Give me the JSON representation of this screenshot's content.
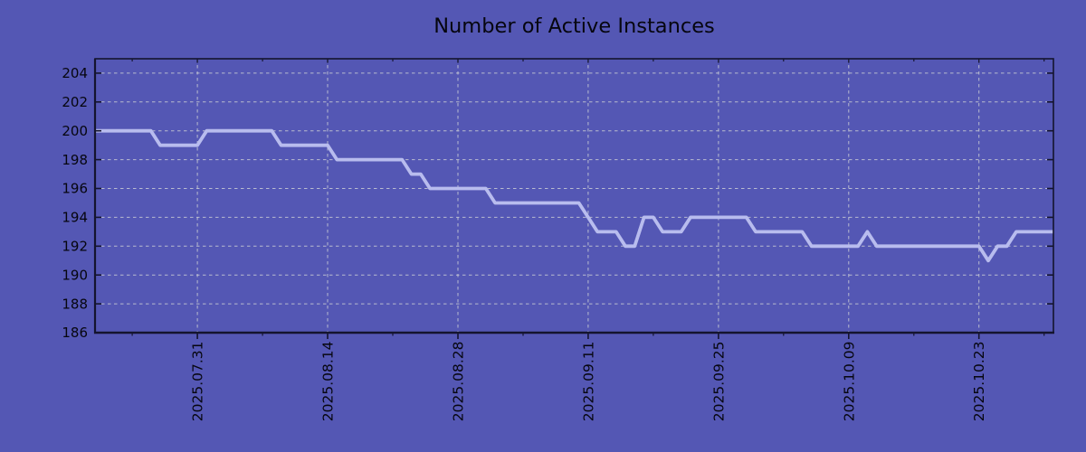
{
  "figure": {
    "title": "Number of Active Instances",
    "background_color": "#5457b4",
    "text_color": "#06060f",
    "axis_color": "#14142e",
    "grid_color": "#caccd4",
    "line_color": "#b8bcee"
  },
  "chart_data": {
    "type": "line",
    "title": "Number of Active Instances",
    "xlabel": "",
    "ylabel": "",
    "legend": null,
    "grid": true,
    "x_unit": "date",
    "x_start_date": "2025.07.20",
    "x_end_date": "2025.10.31",
    "x_step_days": 1,
    "values": [
      200,
      200,
      200,
      200,
      200,
      200,
      200,
      199,
      199,
      199,
      199,
      199,
      200,
      200,
      200,
      200,
      200,
      200,
      200,
      200,
      199,
      199,
      199,
      199,
      199,
      199,
      198,
      198,
      198,
      198,
      198,
      198,
      198,
      198,
      197,
      197,
      196,
      196,
      196,
      196,
      196,
      196,
      196,
      195,
      195,
      195,
      195,
      195,
      195,
      195,
      195,
      195,
      195,
      194,
      193,
      193,
      193,
      192,
      192,
      194,
      194,
      193,
      193,
      193,
      194,
      194,
      194,
      194,
      194,
      194,
      194,
      193,
      193,
      193,
      193,
      193,
      193,
      192,
      192,
      192,
      192,
      192,
      192,
      193,
      192,
      192,
      192,
      192,
      192,
      192,
      192,
      192,
      192,
      192,
      192,
      192,
      191,
      192,
      192,
      193,
      193,
      193,
      193,
      193
    ],
    "segments": [
      {
        "from": "2025.07.20",
        "to": "2025.07.26",
        "value": 200
      },
      {
        "from": "2025.07.27",
        "to": "2025.07.31",
        "value": 199
      },
      {
        "from": "2025.08.01",
        "to": "2025.08.08",
        "value": 200
      },
      {
        "from": "2025.08.09",
        "to": "2025.08.14",
        "value": 199
      },
      {
        "from": "2025.08.15",
        "to": "2025.08.22",
        "value": 198
      },
      {
        "from": "2025.08.23",
        "to": "2025.08.24",
        "value": 197
      },
      {
        "from": "2025.08.25",
        "to": "2025.08.31",
        "value": 196
      },
      {
        "from": "2025.09.01",
        "to": "2025.09.10",
        "value": 195
      },
      {
        "from": "2025.09.11",
        "to": "2025.09.11",
        "value": 194
      },
      {
        "from": "2025.09.12",
        "to": "2025.09.14",
        "value": 193
      },
      {
        "from": "2025.09.15",
        "to": "2025.09.16",
        "value": 192
      },
      {
        "from": "2025.09.17",
        "to": "2025.09.18",
        "value": 194
      },
      {
        "from": "2025.09.19",
        "to": "2025.09.21",
        "value": 193
      },
      {
        "from": "2025.09.22",
        "to": "2025.09.28",
        "value": 194
      },
      {
        "from": "2025.09.29",
        "to": "2025.10.04",
        "value": 193
      },
      {
        "from": "2025.10.05",
        "to": "2025.10.10",
        "value": 192
      },
      {
        "from": "2025.10.11",
        "to": "2025.10.11",
        "value": 193
      },
      {
        "from": "2025.10.12",
        "to": "2025.10.23",
        "value": 192
      },
      {
        "from": "2025.10.24",
        "to": "2025.10.24",
        "value": 191
      },
      {
        "from": "2025.10.25",
        "to": "2025.10.26",
        "value": 192
      },
      {
        "from": "2025.10.27",
        "to": "2025.10.31",
        "value": 193
      }
    ],
    "x_tick_labels": [
      "2025.07.31",
      "2025.08.14",
      "2025.08.28",
      "2025.09.11",
      "2025.09.25",
      "2025.10.09",
      "2025.10.23"
    ],
    "x_tick_day_indices": [
      11,
      25,
      39,
      53,
      67,
      81,
      95
    ],
    "x_minor_tick_day_indices": [
      4,
      18,
      32,
      46,
      60,
      74,
      88,
      102
    ],
    "y_ticks": [
      186,
      188,
      190,
      192,
      194,
      196,
      198,
      200,
      202,
      204
    ],
    "ylim": [
      186,
      205
    ]
  }
}
